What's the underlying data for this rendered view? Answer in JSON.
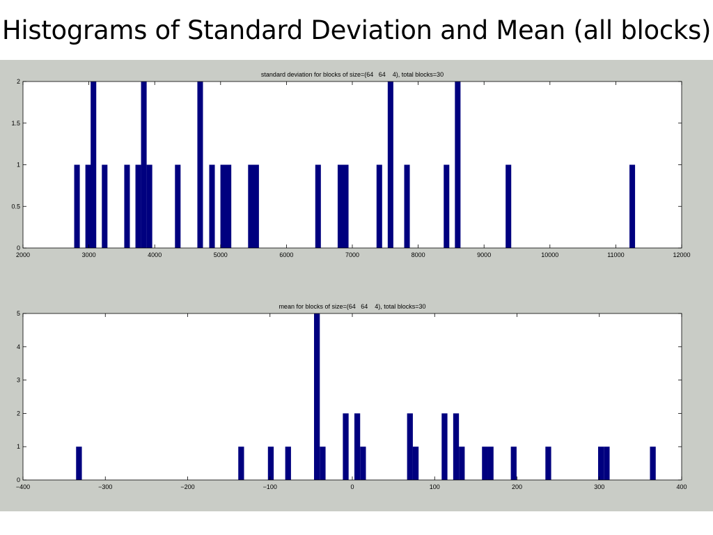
{
  "slide": {
    "title": "Histograms of Standard Deviation and Mean (all blocks)",
    "background_color": "#ffffff",
    "figure_background_color": "#c9ccc6"
  },
  "chart_data": [
    {
      "type": "bar",
      "title": "standard deviation for blocks of size=(64   64    4), total blocks=30",
      "xlabel": "",
      "ylabel": "",
      "xlim": [
        2000,
        12000
      ],
      "ylim": [
        0,
        2
      ],
      "xticks": [
        2000,
        3000,
        4000,
        5000,
        6000,
        7000,
        8000,
        9000,
        10000,
        11000,
        12000
      ],
      "yticks": [
        0,
        0.5,
        1,
        1.5,
        2
      ],
      "xtick_labels": [
        "2000",
        "3000",
        "4000",
        "5000",
        "6000",
        "7000",
        "8000",
        "9000",
        "10000",
        "11000",
        "12000"
      ],
      "ytick_labels": [
        "0",
        "0.5",
        "1",
        "1.5",
        "2"
      ],
      "bar_color": "#00007f",
      "bin_width": 85,
      "bars": [
        {
          "x": 2820,
          "y": 1
        },
        {
          "x": 2990,
          "y": 1
        },
        {
          "x": 3070,
          "y": 2
        },
        {
          "x": 3240,
          "y": 1
        },
        {
          "x": 3580,
          "y": 1
        },
        {
          "x": 3750,
          "y": 1
        },
        {
          "x": 3835,
          "y": 2
        },
        {
          "x": 3920,
          "y": 1
        },
        {
          "x": 4350,
          "y": 1
        },
        {
          "x": 4690,
          "y": 2
        },
        {
          "x": 4870,
          "y": 1
        },
        {
          "x": 5040,
          "y": 1
        },
        {
          "x": 5120,
          "y": 1
        },
        {
          "x": 5460,
          "y": 1
        },
        {
          "x": 5540,
          "y": 1
        },
        {
          "x": 6480,
          "y": 1
        },
        {
          "x": 6820,
          "y": 1
        },
        {
          "x": 6900,
          "y": 1
        },
        {
          "x": 7410,
          "y": 1
        },
        {
          "x": 7580,
          "y": 2
        },
        {
          "x": 7830,
          "y": 1
        },
        {
          "x": 8430,
          "y": 1
        },
        {
          "x": 8600,
          "y": 2
        },
        {
          "x": 9370,
          "y": 1
        },
        {
          "x": 11250,
          "y": 1
        }
      ]
    },
    {
      "type": "bar",
      "title": "mean for blocks of size=(64   64    4), total blocks=30",
      "xlabel": "",
      "ylabel": "",
      "xlim": [
        -400,
        400
      ],
      "ylim": [
        0,
        5
      ],
      "xticks": [
        -400,
        -300,
        -200,
        -100,
        0,
        100,
        200,
        300,
        400
      ],
      "yticks": [
        0,
        1,
        2,
        3,
        4,
        5
      ],
      "xtick_labels": [
        "−400",
        "−300",
        "−200",
        "−100",
        "0",
        "100",
        "200",
        "300",
        "400"
      ],
      "ytick_labels": [
        "0",
        "1",
        "2",
        "3",
        "4",
        "5"
      ],
      "bar_color": "#00007f",
      "bin_width": 7,
      "bars": [
        {
          "x": -332,
          "y": 1
        },
        {
          "x": -135,
          "y": 1
        },
        {
          "x": -99,
          "y": 1
        },
        {
          "x": -78,
          "y": 1
        },
        {
          "x": -43,
          "y": 5
        },
        {
          "x": -36,
          "y": 1
        },
        {
          "x": -8,
          "y": 2
        },
        {
          "x": 6,
          "y": 2
        },
        {
          "x": 13,
          "y": 1
        },
        {
          "x": 70,
          "y": 2
        },
        {
          "x": 77,
          "y": 1
        },
        {
          "x": 112,
          "y": 2
        },
        {
          "x": 126,
          "y": 2
        },
        {
          "x": 133,
          "y": 1
        },
        {
          "x": 161,
          "y": 1
        },
        {
          "x": 168,
          "y": 1
        },
        {
          "x": 196,
          "y": 1
        },
        {
          "x": 238,
          "y": 1
        },
        {
          "x": 302,
          "y": 1
        },
        {
          "x": 309,
          "y": 1
        },
        {
          "x": 365,
          "y": 1
        }
      ]
    }
  ]
}
